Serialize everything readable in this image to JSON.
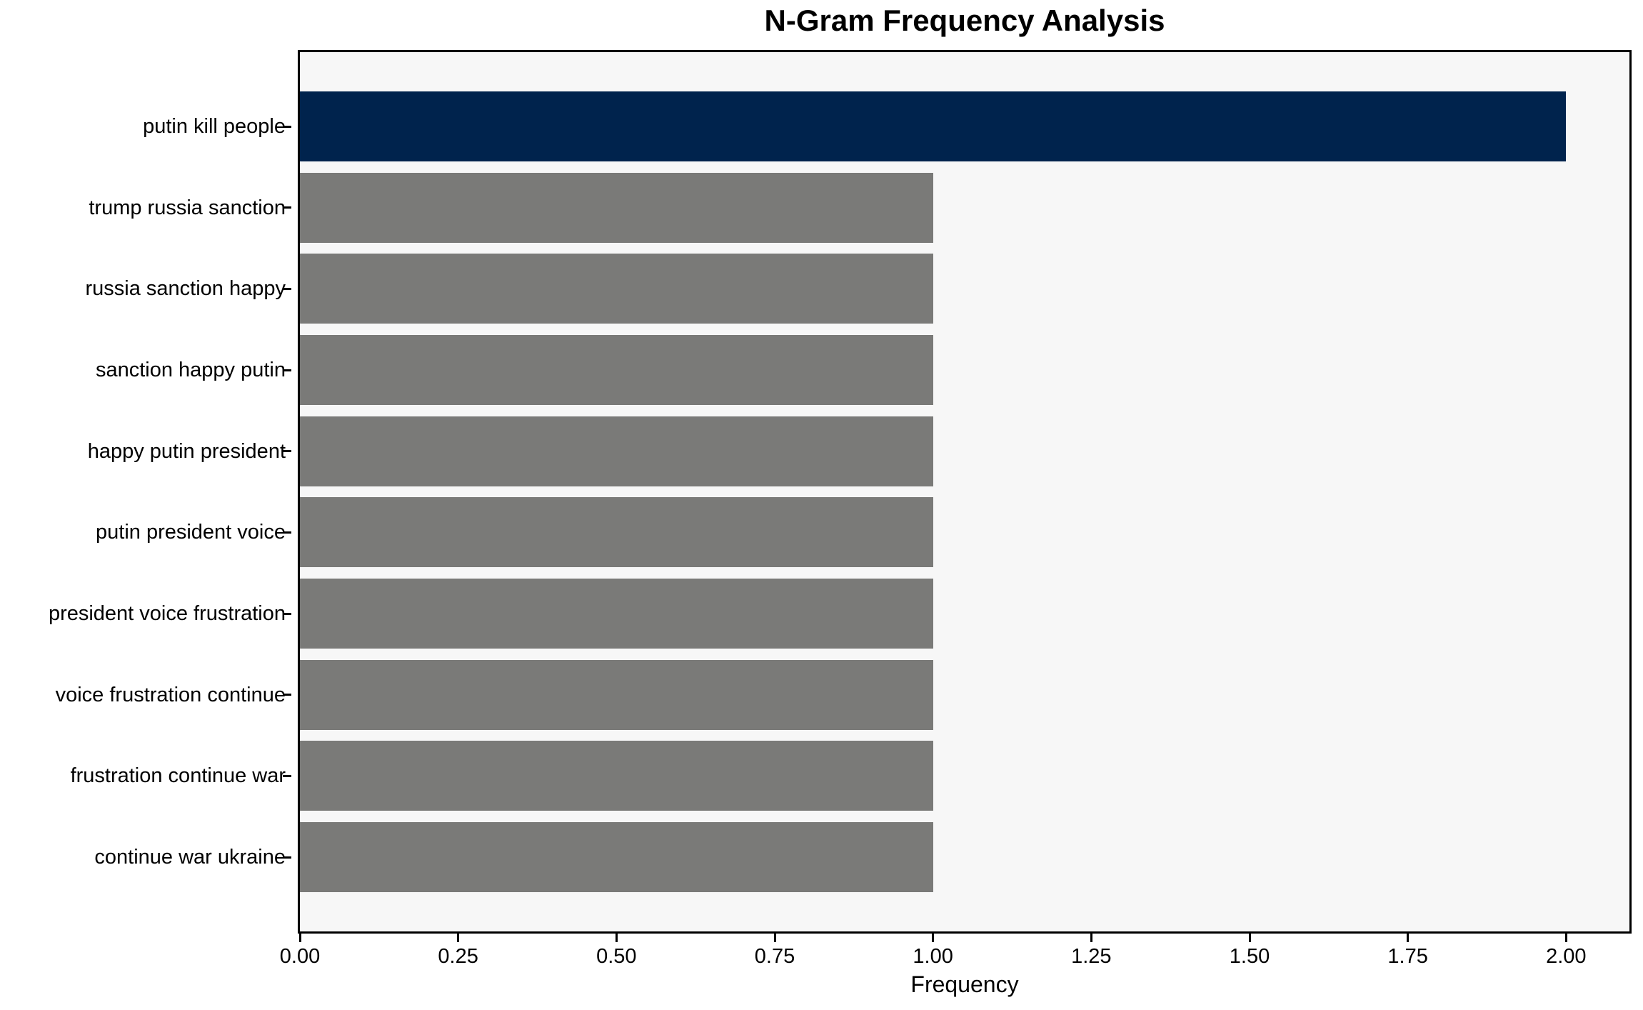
{
  "chart_data": {
    "type": "bar",
    "orientation": "horizontal",
    "title": "N-Gram Frequency Analysis",
    "xlabel": "Frequency",
    "ylabel": "",
    "categories": [
      "putin kill people",
      "trump russia sanction",
      "russia sanction happy",
      "sanction happy putin",
      "happy putin president",
      "putin president voice",
      "president voice frustration",
      "voice frustration continue",
      "frustration continue war",
      "continue war ukraine"
    ],
    "values": [
      2,
      1,
      1,
      1,
      1,
      1,
      1,
      1,
      1,
      1
    ],
    "bar_colors": [
      "#00234d",
      "#7a7a78",
      "#7a7a78",
      "#7a7a78",
      "#7a7a78",
      "#7a7a78",
      "#7a7a78",
      "#7a7a78",
      "#7a7a78",
      "#7a7a78"
    ],
    "highlight_color": "#00234d",
    "default_color": "#7a7a78",
    "xlim": [
      0,
      2.1
    ],
    "xticks": [
      0,
      0.25,
      0.5,
      0.75,
      1.0,
      1.25,
      1.5,
      1.75,
      2.0
    ],
    "xtick_labels": [
      "0.00",
      "0.25",
      "0.50",
      "0.75",
      "1.00",
      "1.25",
      "1.50",
      "1.75",
      "2.00"
    ],
    "grid": false,
    "legend": false,
    "plot_background": "#f7f7f7",
    "figure_background": "#ffffff",
    "axis_color": "#000000"
  }
}
